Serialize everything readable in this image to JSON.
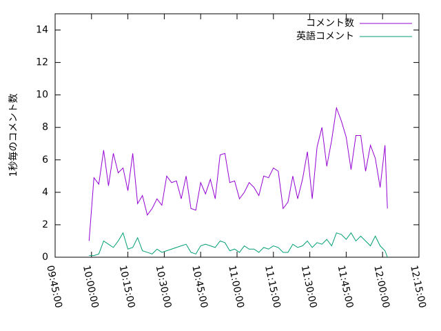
{
  "chart_data": {
    "type": "line",
    "ylabel": "1秒毎のコメント数",
    "x": [
      "09:59:00",
      "10:01:00",
      "10:03:00",
      "10:05:00",
      "10:07:00",
      "10:09:00",
      "10:11:00",
      "10:13:00",
      "10:15:00",
      "10:17:00",
      "10:19:00",
      "10:21:00",
      "10:23:00",
      "10:25:00",
      "10:27:00",
      "10:29:00",
      "10:31:00",
      "10:33:00",
      "10:35:00",
      "10:37:00",
      "10:39:00",
      "10:41:00",
      "10:43:00",
      "10:45:00",
      "10:47:00",
      "10:49:00",
      "10:51:00",
      "10:53:00",
      "10:55:00",
      "10:57:00",
      "10:59:00",
      "11:01:00",
      "11:03:00",
      "11:05:00",
      "11:07:00",
      "11:09:00",
      "11:11:00",
      "11:13:00",
      "11:15:00",
      "11:17:00",
      "11:19:00",
      "11:21:00",
      "11:23:00",
      "11:25:00",
      "11:27:00",
      "11:29:00",
      "11:31:00",
      "11:33:00",
      "11:35:00",
      "11:37:00",
      "11:39:00",
      "11:41:00",
      "11:43:00",
      "11:45:00",
      "11:47:00",
      "11:49:00",
      "11:51:00",
      "11:53:00",
      "11:55:00",
      "11:57:00",
      "11:59:00",
      "12:01:00",
      "12:02:00"
    ],
    "series": [
      {
        "name": "コメント数",
        "color": "#9400d3",
        "values": [
          1.0,
          4.9,
          4.5,
          6.6,
          4.4,
          6.4,
          5.2,
          5.5,
          4.1,
          6.4,
          3.3,
          3.8,
          2.6,
          3.0,
          3.6,
          3.2,
          5.0,
          4.6,
          4.7,
          3.6,
          5.0,
          3.0,
          2.9,
          4.6,
          3.9,
          4.8,
          3.6,
          6.3,
          6.4,
          4.6,
          4.7,
          3.6,
          4.0,
          4.6,
          4.3,
          3.8,
          5.0,
          4.9,
          5.5,
          5.3,
          3.0,
          3.4,
          5.0,
          3.6,
          4.8,
          6.5,
          3.6,
          6.8,
          8.0,
          5.6,
          7.2,
          9.2,
          8.4,
          7.4,
          5.4,
          7.5,
          7.5,
          5.3,
          6.9,
          6.1,
          4.3,
          6.9,
          3.0
        ]
      },
      {
        "name": "英語コメント",
        "color": "#009e73",
        "values": [
          0.1,
          0.1,
          0.2,
          1.0,
          0.8,
          0.6,
          1.0,
          1.5,
          0.5,
          0.6,
          1.2,
          0.4,
          0.3,
          0.2,
          0.5,
          0.3,
          0.4,
          0.5,
          0.6,
          0.7,
          0.8,
          0.3,
          0.2,
          0.7,
          0.8,
          0.7,
          0.6,
          1.0,
          0.9,
          0.4,
          0.5,
          0.3,
          0.7,
          0.5,
          0.5,
          0.3,
          0.6,
          0.5,
          0.7,
          0.6,
          0.3,
          0.3,
          0.8,
          0.6,
          0.7,
          1.0,
          0.6,
          0.9,
          0.8,
          1.1,
          0.7,
          1.5,
          1.4,
          1.1,
          1.5,
          1.0,
          1.3,
          1.0,
          0.7,
          1.3,
          0.7,
          0.4,
          0.0
        ]
      }
    ],
    "xlim": [
      "09:45:00",
      "12:15:00"
    ],
    "xticks": [
      "09:45:00",
      "10:00:00",
      "10:15:00",
      "10:30:00",
      "10:45:00",
      "11:00:00",
      "11:15:00",
      "11:30:00",
      "11:45:00",
      "12:00:00",
      "12:15:00"
    ],
    "ylim": [
      0,
      15
    ],
    "yticks": [
      0,
      2,
      4,
      6,
      8,
      10,
      12,
      14
    ],
    "grid": false,
    "legend": "top-right"
  }
}
